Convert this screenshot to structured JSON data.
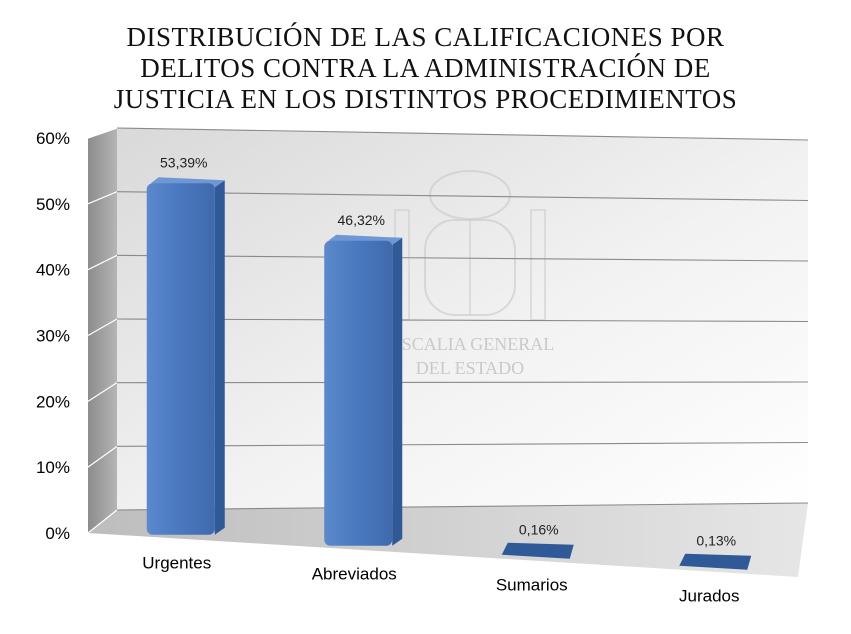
{
  "chart_data": {
    "type": "bar",
    "title_lines": [
      "DISTRIBUCIÓN DE LAS CALIFICACIONES POR",
      "DELITOS CONTRA LA ADMINISTRACIÓN DE",
      "JUSTICIA EN LOS DISTINTOS PROCEDIMIENTOS"
    ],
    "categories": [
      "Urgentes",
      "Abreviados",
      "Sumarios",
      "Jurados"
    ],
    "values": [
      53.39,
      46.32,
      0.16,
      0.13
    ],
    "value_labels": [
      "53,39%",
      "46,32%",
      "0,16%",
      "0,13%"
    ],
    "y_ticks": [
      "0%",
      "10%",
      "20%",
      "30%",
      "40%",
      "50%",
      "60%"
    ],
    "ylim": [
      0,
      60
    ],
    "grid": true,
    "legend": "none",
    "colors": {
      "bar": "#4a78be",
      "bar_dark": "#2f5a97",
      "bar_top": "#6f97d4"
    },
    "watermark_lines": [
      "FISCALIA GENERAL",
      "DEL ESTADO"
    ]
  }
}
